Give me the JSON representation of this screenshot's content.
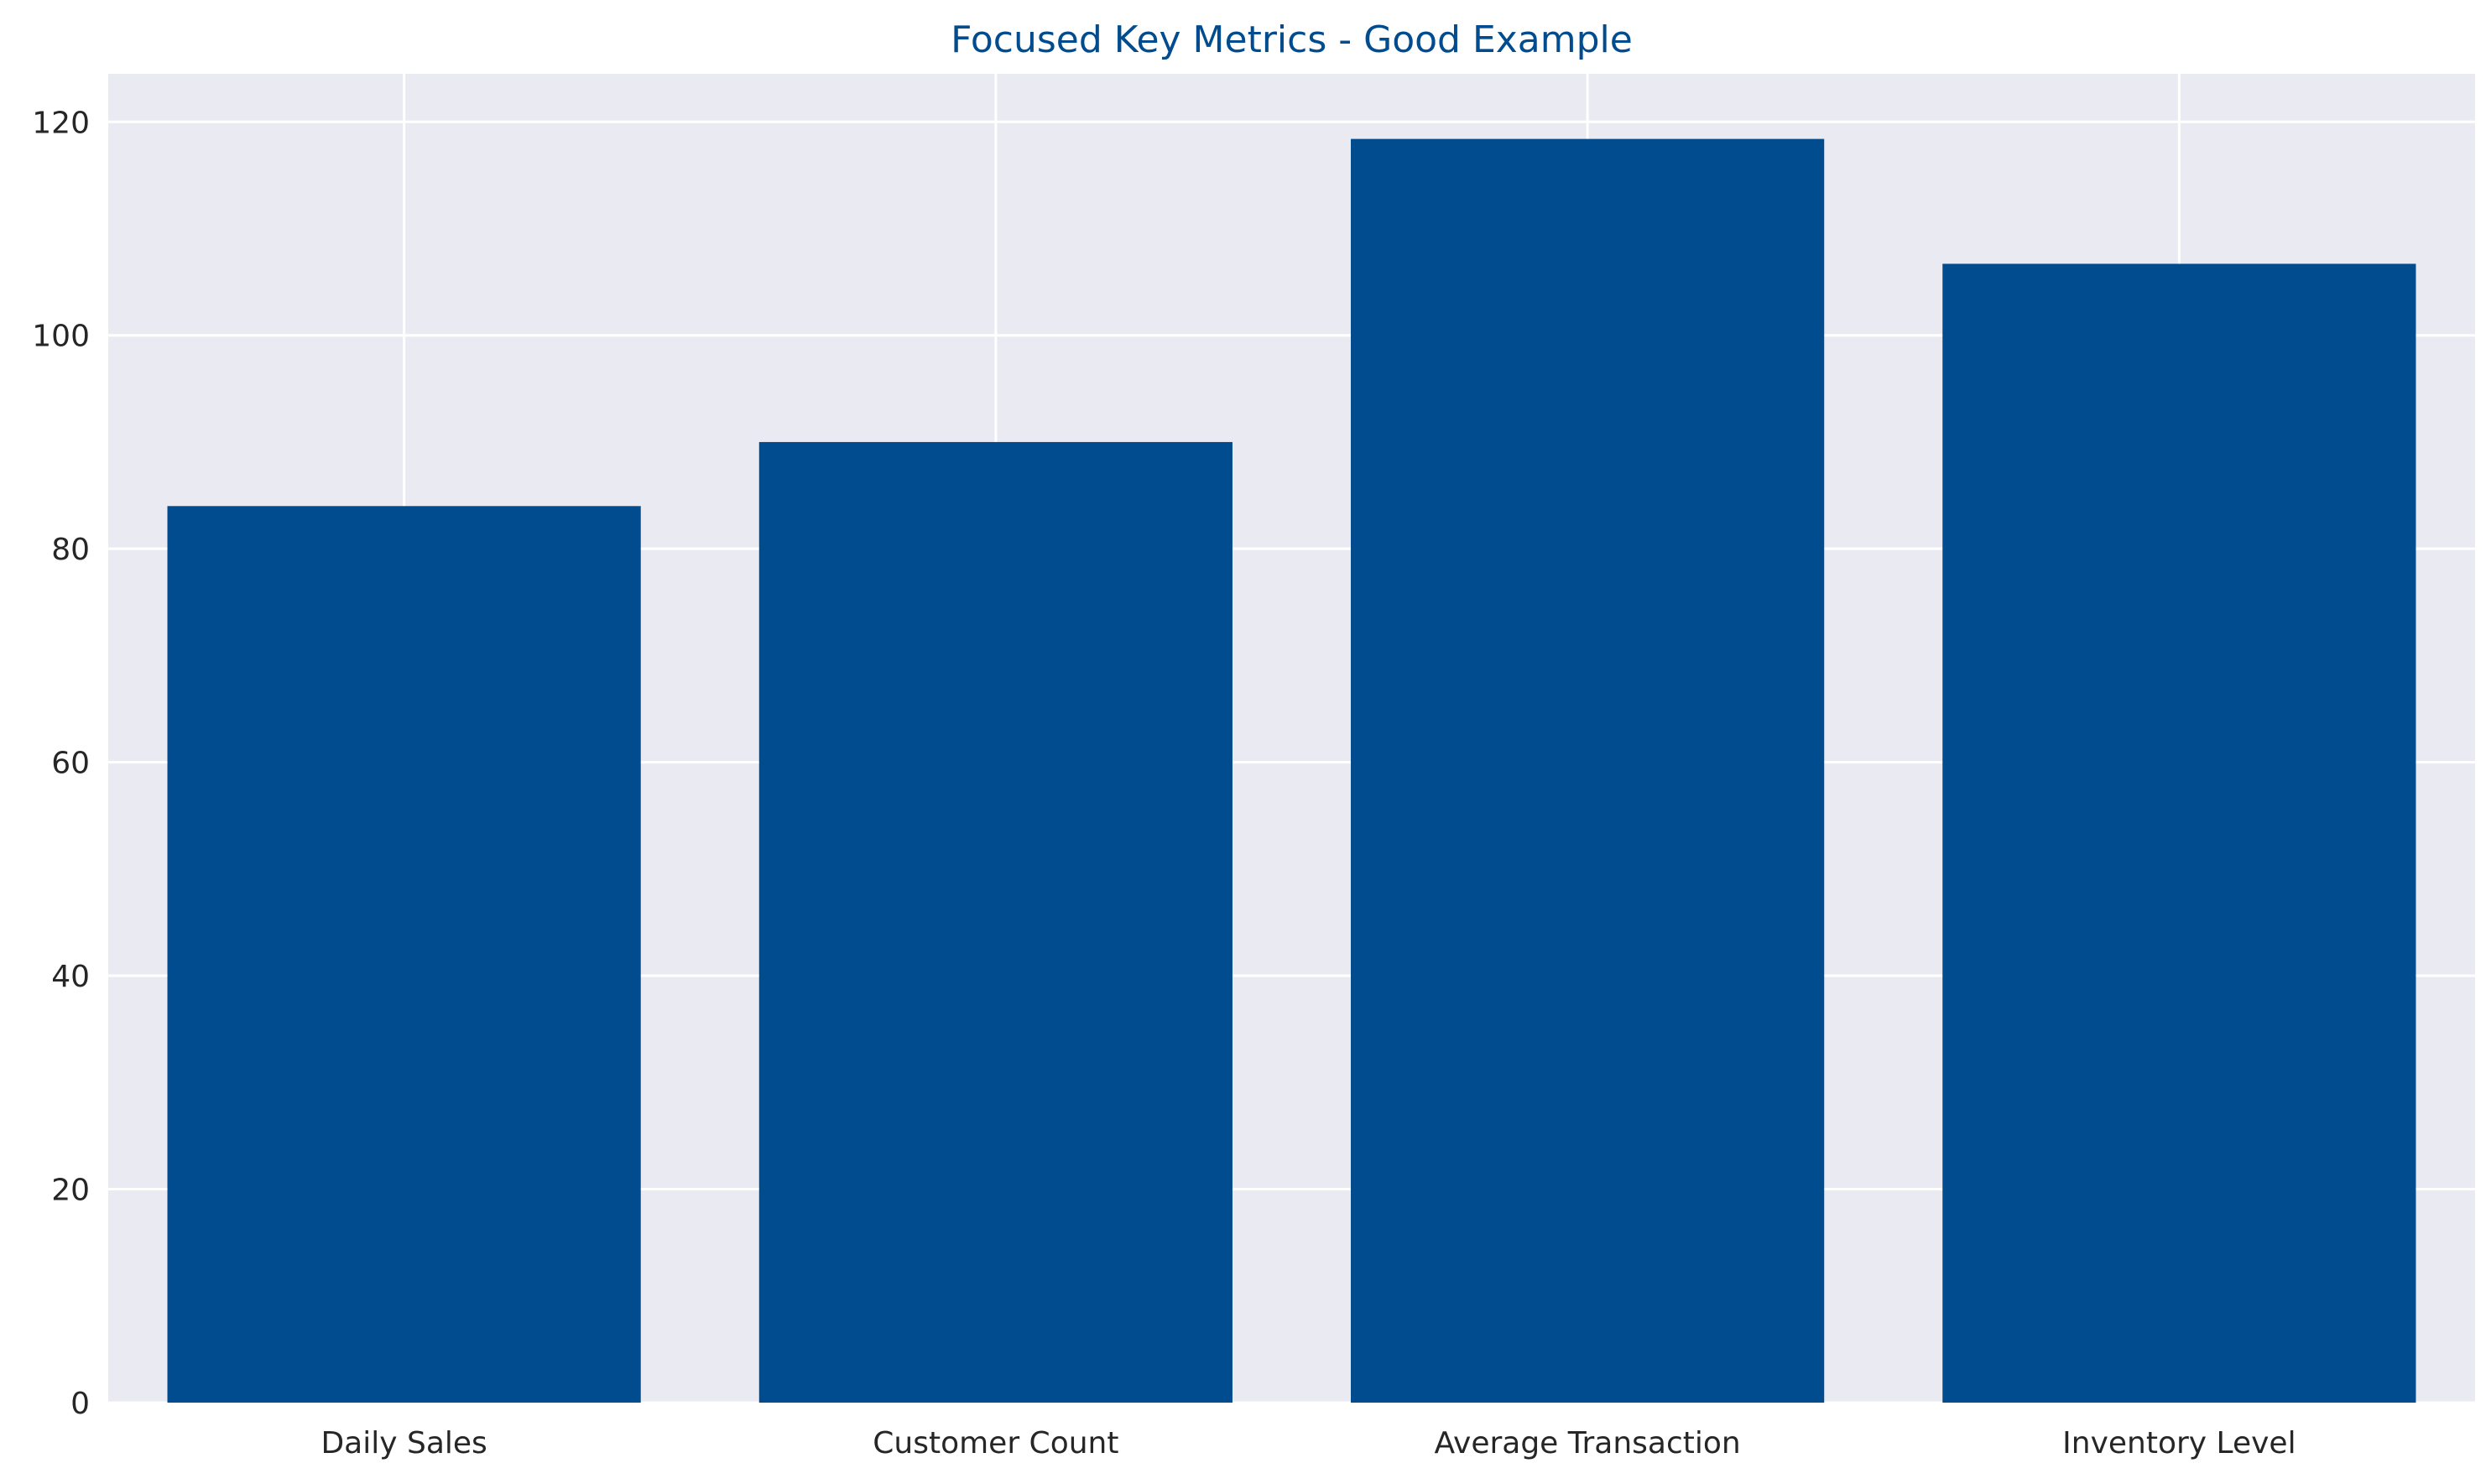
{
  "chart_data": {
    "type": "bar",
    "title": "Focused Key Metrics - Good Example",
    "xlabel": "",
    "ylabel": "",
    "categories": [
      "Daily Sales",
      "Customer Count",
      "Average Transaction",
      "Inventory Level"
    ],
    "values": [
      84,
      90,
      118.4,
      106.7
    ],
    "ylim": [
      0,
      124.5
    ],
    "yticks": [
      0,
      20,
      40,
      60,
      80,
      100,
      120
    ],
    "grid": true,
    "colors": {
      "bar": "#004c8f",
      "title": "#004c8f",
      "plot_background": "#eaeaf2",
      "grid": "#ffffff",
      "text": "#262626"
    }
  }
}
